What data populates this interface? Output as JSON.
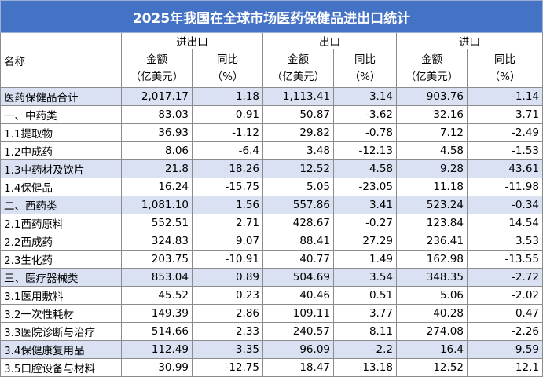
{
  "title": "2025年我国在全球市场医药保健品进出口统计",
  "header": {
    "name": "名称",
    "groups": [
      "进出口",
      "出口",
      "进口"
    ],
    "columns": [
      [
        "金额",
        "（亿美元）"
      ],
      [
        "同比",
        "（%）"
      ],
      [
        "金额",
        "（亿美元）"
      ],
      [
        "同比",
        "（%）"
      ],
      [
        "金额",
        "（亿美元）"
      ],
      [
        "同比",
        "（%）"
      ]
    ]
  },
  "table": {
    "rows": [
      [
        "医药保健品合计",
        "2,017.17",
        "1.18",
        "1,113.41",
        "3.14",
        "903.76",
        "-1.14"
      ],
      [
        "一、中药类",
        "83.03",
        "-0.91",
        "50.87",
        "-3.62",
        "32.16",
        "3.71"
      ],
      [
        "1.1提取物",
        "36.93",
        "-1.12",
        "29.82",
        "-0.78",
        "7.12",
        "-2.49"
      ],
      [
        "1.2中成药",
        "8.06",
        "-6.4",
        "3.48",
        "-12.13",
        "4.58",
        "-1.53"
      ],
      [
        "1.3中药材及饮片",
        "21.8",
        "18.26",
        "12.52",
        "4.58",
        "9.28",
        "43.61"
      ],
      [
        "1.4保健品",
        "16.24",
        "-15.75",
        "5.05",
        "-23.05",
        "11.18",
        "-11.98"
      ],
      [
        "二、西药类",
        "1,081.10",
        "1.56",
        "557.86",
        "3.41",
        "523.24",
        "-0.34"
      ],
      [
        "2.1西药原料",
        "552.51",
        "2.71",
        "428.67",
        "-0.27",
        "123.84",
        "14.54"
      ],
      [
        "2.2西成药",
        "324.83",
        "9.07",
        "88.41",
        "27.29",
        "236.41",
        "3.53"
      ],
      [
        "2.3生化药",
        "203.75",
        "-10.91",
        "40.77",
        "1.49",
        "162.98",
        "-13.55"
      ],
      [
        "三、医疗器械类",
        "853.04",
        "0.89",
        "504.69",
        "3.54",
        "348.35",
        "-2.72"
      ],
      [
        "3.1医用敷料",
        "45.52",
        "0.23",
        "40.46",
        "0.51",
        "5.06",
        "-2.02"
      ],
      [
        "3.2一次性耗材",
        "149.39",
        "2.86",
        "109.11",
        "3.77",
        "40.28",
        "0.47"
      ],
      [
        "3.3医院诊断与治疗",
        "514.66",
        "2.33",
        "240.57",
        "8.11",
        "274.08",
        "-2.26"
      ],
      [
        "3.4保健康复用品",
        "112.49",
        "-3.35",
        "96.09",
        "-2.2",
        "16.4",
        "-9.59"
      ],
      [
        "3.5口腔设备与材料",
        "30.99",
        "-12.75",
        "18.47",
        "-13.18",
        "12.52",
        "-12.1"
      ]
    ]
  }
}
